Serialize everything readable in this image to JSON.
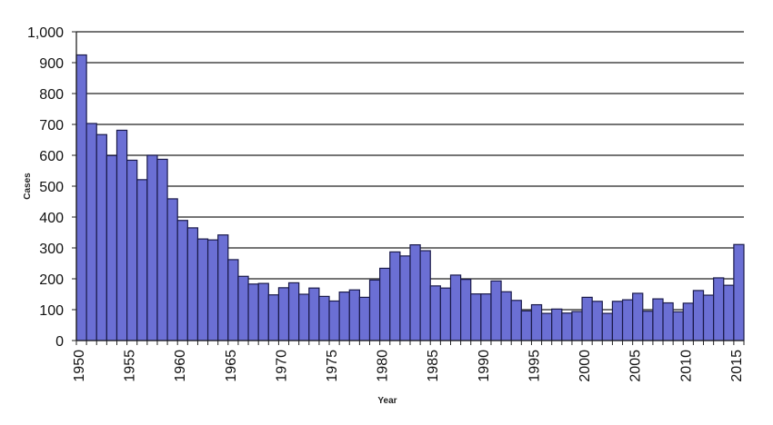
{
  "chart_data": {
    "type": "bar",
    "title": "",
    "xlabel": "Year",
    "ylabel": "Cases",
    "ylim": [
      0,
      1000
    ],
    "yticks": [
      "0",
      "100",
      "200",
      "300",
      "400",
      "500",
      "600",
      "700",
      "800",
      "900",
      "1,000"
    ],
    "xtick_labels": [
      "1950",
      "1955",
      "1960",
      "1965",
      "1970",
      "1975",
      "1980",
      "1985",
      "1990",
      "1995",
      "2000",
      "2005",
      "2010",
      "2015"
    ],
    "grid": true,
    "legend": null,
    "bar_color": "#6b6fd4",
    "bar_edge_color": "#1a1a4a",
    "categories": [
      1950,
      1951,
      1952,
      1953,
      1954,
      1955,
      1956,
      1957,
      1958,
      1959,
      1960,
      1961,
      1962,
      1963,
      1964,
      1965,
      1966,
      1967,
      1968,
      1969,
      1970,
      1971,
      1972,
      1973,
      1974,
      1975,
      1976,
      1977,
      1978,
      1979,
      1980,
      1981,
      1982,
      1983,
      1984,
      1985,
      1986,
      1987,
      1988,
      1989,
      1990,
      1991,
      1992,
      1993,
      1994,
      1995,
      1996,
      1997,
      1998,
      1999,
      2000,
      2001,
      2002,
      2003,
      2004,
      2005,
      2006,
      2007,
      2008,
      2009,
      2010,
      2011,
      2012,
      2013,
      2014,
      2015
    ],
    "values": [
      925,
      703,
      667,
      599,
      681,
      584,
      521,
      600,
      587,
      459,
      389,
      365,
      329,
      326,
      342,
      262,
      208,
      183,
      185,
      148,
      171,
      187,
      150,
      170,
      143,
      128,
      157,
      164,
      140,
      196,
      234,
      287,
      274,
      310,
      291,
      177,
      170,
      212,
      198,
      151,
      151,
      193,
      158,
      130,
      96,
      116,
      88,
      102,
      89,
      94,
      140,
      127,
      88,
      127,
      132,
      153,
      95,
      135,
      122,
      93,
      121,
      162,
      147,
      203,
      179,
      311
    ]
  }
}
